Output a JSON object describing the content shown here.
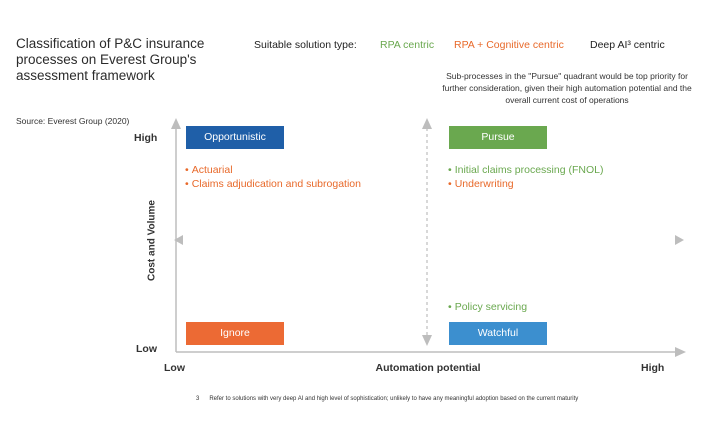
{
  "header": {
    "title": "Classification of P&C insurance processes on Everest Group's assessment framework",
    "source": "Source: Everest Group (2020)"
  },
  "legend": {
    "label": "Suitable solution type:",
    "items": [
      {
        "text": "RPA centric",
        "color": "#6aa84f"
      },
      {
        "text": "RPA + Cognitive centric",
        "color": "#e8692a"
      },
      {
        "text": "Deep AI³ centric",
        "color": "#222222"
      }
    ]
  },
  "note": "Sub-processes in the \"Pursue\" quadrant would be top priority for further consideration, given their high automation potential and the overall current cost of operations",
  "axes": {
    "y_label": "Cost and Volume",
    "y_high": "High",
    "y_low": "Low",
    "x_label": "Automation potential",
    "x_low": "Low",
    "x_high": "High"
  },
  "quadrants": {
    "opportunistic": {
      "label": "Opportunistic",
      "color": "#1f5fa8"
    },
    "pursue": {
      "label": "Pursue",
      "color": "#6aa84f"
    },
    "ignore": {
      "label": "Ignore",
      "color": "#ec6a34"
    },
    "watchful": {
      "label": "Watchful",
      "color": "#3c8fcf"
    }
  },
  "items": {
    "opportunistic": [
      "Actuarial",
      "Claims adjudication and subrogation"
    ],
    "pursue": [
      {
        "text": "Initial claims processing (FNOL)",
        "color": "#6aa84f"
      },
      {
        "text": "Underwriting",
        "color": "#e8692a"
      }
    ],
    "watchful": [
      "Policy servicing"
    ]
  },
  "footnote": {
    "number": "3",
    "text": "Refer to solutions with very deep AI and high level of sophistication; unlikely to have any meaningful adoption based on the current maturity"
  }
}
